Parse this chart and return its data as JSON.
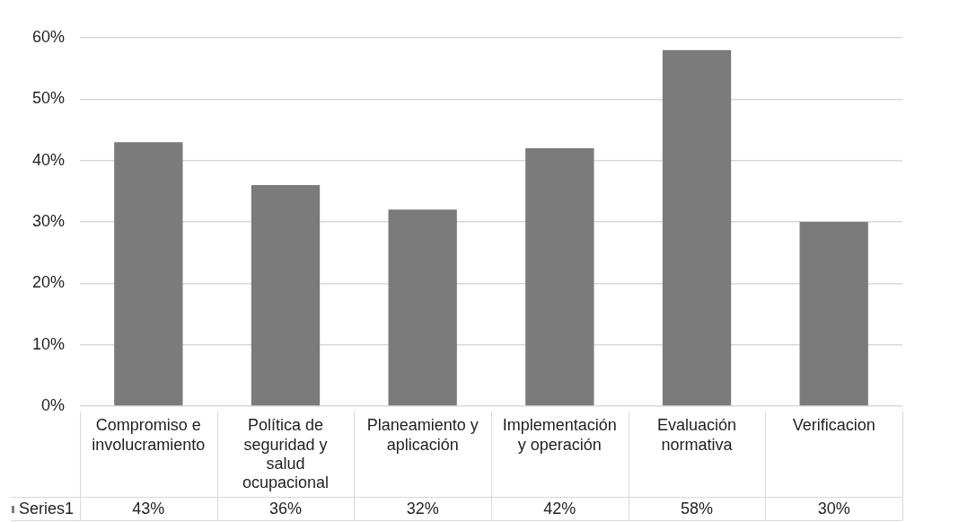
{
  "chart_data": {
    "type": "bar",
    "categories": [
      "Compromiso e involucramiento",
      "Política de seguridad y salud ocupacional",
      "Planeamiento y aplicación",
      "Implementación y operación",
      "Evaluación normativa",
      "Verificacion"
    ],
    "series": [
      {
        "name": "Series1",
        "color": "#7b7b7b",
        "values": [
          43,
          36,
          32,
          42,
          58,
          30
        ],
        "value_labels": [
          "43%",
          "36%",
          "32%",
          "42%",
          "58%",
          "30%"
        ]
      }
    ],
    "ylim": [
      0,
      60
    ],
    "yticks": [
      {
        "value": 0,
        "label": "0%"
      },
      {
        "value": 10,
        "label": "10%"
      },
      {
        "value": 20,
        "label": "20%"
      },
      {
        "value": 30,
        "label": "30%"
      },
      {
        "value": 40,
        "label": "40%"
      },
      {
        "value": 50,
        "label": "50%"
      },
      {
        "value": 60,
        "label": "60%"
      }
    ],
    "grid": "y",
    "legend": "bottom left"
  }
}
